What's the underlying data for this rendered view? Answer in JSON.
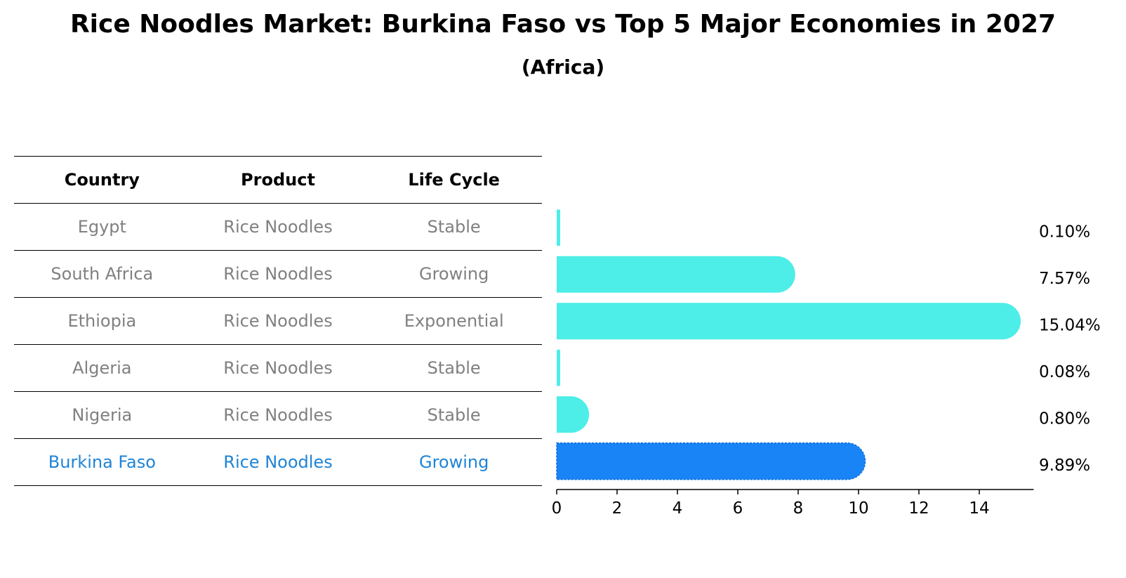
{
  "title": "Rice Noodles Market: Burkina Faso vs Top 5 Major Economies in 2027",
  "subtitle": "(Africa)",
  "table": {
    "headers": {
      "country": "Country",
      "product": "Product",
      "life_cycle": "Life Cycle"
    },
    "rows": [
      {
        "country": "Egypt",
        "product": "Rice Noodles",
        "life_cycle": "Stable"
      },
      {
        "country": "South Africa",
        "product": "Rice Noodles",
        "life_cycle": "Growing"
      },
      {
        "country": "Ethiopia",
        "product": "Rice Noodles",
        "life_cycle": "Exponential"
      },
      {
        "country": "Algeria",
        "product": "Rice Noodles",
        "life_cycle": "Stable"
      },
      {
        "country": "Nigeria",
        "product": "Rice Noodles",
        "life_cycle": "Stable"
      },
      {
        "country": "Burkina Faso",
        "product": "Rice Noodles",
        "life_cycle": "Growing"
      }
    ]
  },
  "colors": {
    "bar": "#4dede8",
    "highlight_bar": "#1984f5",
    "highlight_text": "#1f84d6",
    "muted_text": "#808080"
  },
  "chart_data": {
    "type": "bar",
    "orientation": "horizontal",
    "categories": [
      "Egypt",
      "South Africa",
      "Ethiopia",
      "Algeria",
      "Nigeria",
      "Burkina Faso"
    ],
    "values": [
      0.1,
      7.57,
      15.04,
      0.08,
      0.8,
      9.89
    ],
    "value_labels": [
      "0.10%",
      "7.57%",
      "15.04%",
      "0.08%",
      "0.80%",
      "9.89%"
    ],
    "highlight": "Burkina Faso",
    "xlim": [
      0,
      15.8
    ],
    "xticks": [
      0,
      2,
      4,
      6,
      8,
      10,
      12,
      14
    ],
    "xlabel": "",
    "ylabel": "",
    "grid": false
  }
}
